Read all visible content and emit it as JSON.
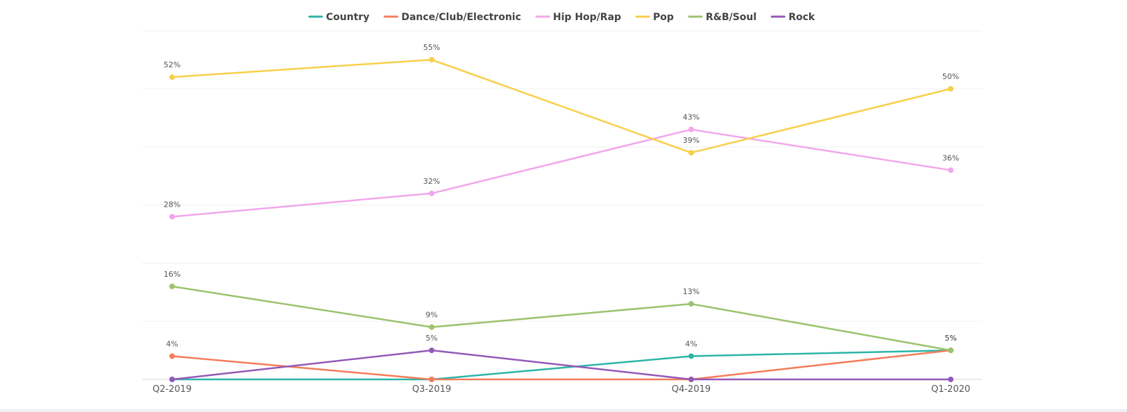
{
  "chart_data": {
    "type": "line",
    "categories": [
      "Q2-2019",
      "Q3-2019",
      "Q4-2019",
      "Q1-2020"
    ],
    "ylim": [
      0,
      60
    ],
    "grid": true,
    "legend_position": "top-center",
    "series": [
      {
        "name": "Country",
        "color": "#2bb5a8",
        "values": [
          0,
          0,
          4,
          5
        ],
        "labels": [
          "",
          "",
          "4%",
          ""
        ]
      },
      {
        "name": "Dance/Club/Electronic",
        "color": "#f47c5a",
        "values": [
          4,
          0,
          0,
          5
        ],
        "labels": [
          "4%",
          "",
          "",
          "5%"
        ]
      },
      {
        "name": "Hip Hop/Rap",
        "color": "#f2a6ea",
        "values": [
          28,
          32,
          43,
          36
        ],
        "labels": [
          "28%",
          "32%",
          "43%",
          "36%"
        ]
      },
      {
        "name": "Pop",
        "color": "#f8cf4a",
        "values": [
          52,
          55,
          39,
          50
        ],
        "labels": [
          "52%",
          "55%",
          "39%",
          "50%"
        ]
      },
      {
        "name": "R&B/Soul",
        "color": "#9cc26e",
        "values": [
          16,
          9,
          13,
          5
        ],
        "labels": [
          "16%",
          "9%",
          "13%",
          "5%"
        ]
      },
      {
        "name": "Rock",
        "color": "#9459b7",
        "values": [
          0,
          5,
          0,
          0
        ],
        "labels": [
          "",
          "5%",
          "",
          ""
        ]
      }
    ]
  }
}
